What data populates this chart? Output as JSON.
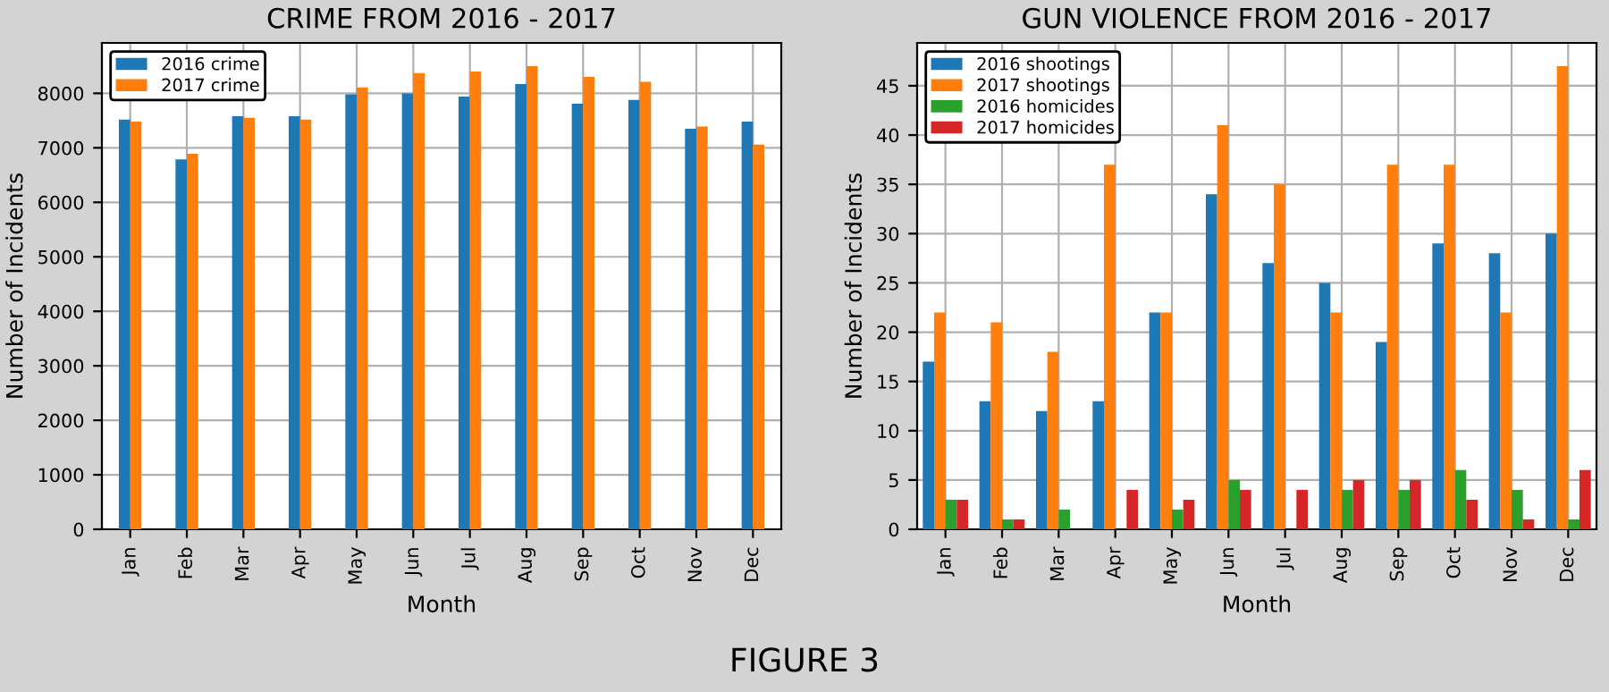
{
  "chart_data": [
    {
      "type": "bar",
      "title": "CRIME FROM 2016 - 2017",
      "xlabel": "Month",
      "ylabel": "Number of Incidents",
      "categories": [
        "Jan",
        "Feb",
        "Mar",
        "Apr",
        "May",
        "Jun",
        "Jul",
        "Aug",
        "Sep",
        "Oct",
        "Nov",
        "Dec"
      ],
      "series": [
        {
          "name": "2016 crime",
          "color": "#1f77b4",
          "values": [
            7520,
            6790,
            7580,
            7580,
            7980,
            8000,
            7940,
            8170,
            7810,
            7880,
            7350,
            7480
          ]
        },
        {
          "name": "2017 crime",
          "color": "#ff7f0e",
          "values": [
            7480,
            6890,
            7550,
            7520,
            8110,
            8370,
            8400,
            8500,
            8300,
            8210,
            7390,
            7060
          ]
        }
      ],
      "ylim": [
        0,
        8925
      ],
      "yticks": [
        0,
        1000,
        2000,
        3000,
        4000,
        5000,
        6000,
        7000,
        8000
      ],
      "grid": true,
      "legend": "top left",
      "annotations": [
        "FIGURE 3"
      ]
    },
    {
      "type": "bar",
      "title": "GUN VIOLENCE FROM 2016 - 2017",
      "xlabel": "Month",
      "ylabel": "Number of Incidents",
      "categories": [
        "Jan",
        "Feb",
        "Mar",
        "Apr",
        "May",
        "Jun",
        "Jul",
        "Aug",
        "Sep",
        "Oct",
        "Nov",
        "Dec"
      ],
      "series": [
        {
          "name": "2016 shootings",
          "color": "#1f77b4",
          "values": [
            17,
            13,
            12,
            13,
            22,
            34,
            27,
            25,
            19,
            29,
            28,
            30
          ]
        },
        {
          "name": "2017 shootings",
          "color": "#ff7f0e",
          "values": [
            22,
            21,
            18,
            37,
            22,
            41,
            35,
            22,
            37,
            37,
            22,
            47
          ]
        },
        {
          "name": "2016 homicides",
          "color": "#2ca02c",
          "values": [
            3,
            1,
            2,
            0,
            2,
            5,
            0,
            4,
            4,
            6,
            4,
            1
          ]
        },
        {
          "name": "2017 homicides",
          "color": "#d62728",
          "values": [
            3,
            1,
            0,
            4,
            3,
            4,
            4,
            5,
            5,
            3,
            1,
            6
          ]
        }
      ],
      "ylim": [
        0,
        49.35
      ],
      "yticks": [
        0,
        5,
        10,
        15,
        20,
        25,
        30,
        35,
        40,
        45
      ],
      "grid": true,
      "legend": "top left"
    }
  ]
}
